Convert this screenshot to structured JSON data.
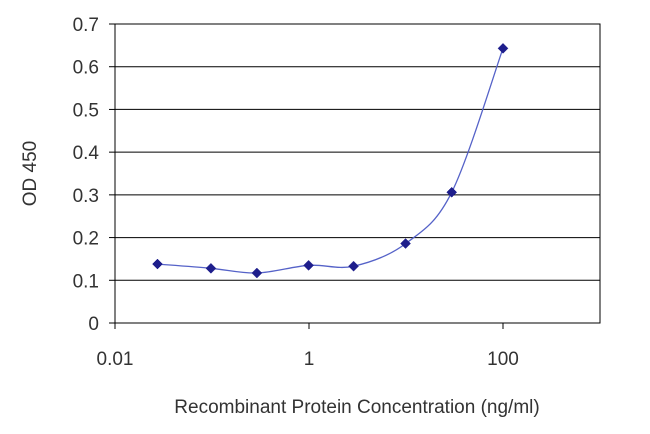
{
  "chart_data": {
    "type": "line",
    "title": "",
    "xlabel": "Recombinant Protein Concentration (ng/ml)",
    "ylabel": "OD 450",
    "x_scale": "log10",
    "xlim": [
      0.01,
      1000
    ],
    "ylim": [
      0,
      0.7
    ],
    "grid": "horizontal",
    "legend": "none",
    "x_ticks": [
      {
        "value": 0.01,
        "label": "0.01"
      },
      {
        "value": 1,
        "label": "1"
      },
      {
        "value": 100,
        "label": "100"
      }
    ],
    "y_ticks": [
      {
        "value": 0,
        "label": "0"
      },
      {
        "value": 0.1,
        "label": "0.1"
      },
      {
        "value": 0.2,
        "label": "0.2"
      },
      {
        "value": 0.3,
        "label": "0.3"
      },
      {
        "value": 0.4,
        "label": "0.4"
      },
      {
        "value": 0.5,
        "label": "0.5"
      },
      {
        "value": 0.6,
        "label": "0.6"
      },
      {
        "value": 0.7,
        "label": "0.7"
      }
    ],
    "series": [
      {
        "x": [
          0.0274,
          0.0975,
          0.29,
          0.99,
          2.88,
          9.9,
          29.6,
          100
        ],
        "y": [
          0.138,
          0.128,
          0.117,
          0.135,
          0.133,
          0.186,
          0.306,
          0.643
        ],
        "color": "#1e1e8c"
      }
    ],
    "colors": {
      "line": "#5562c8",
      "marker": "#1e1e8c",
      "axis": "#000000",
      "grid": "#000000",
      "text": "#333333"
    }
  }
}
